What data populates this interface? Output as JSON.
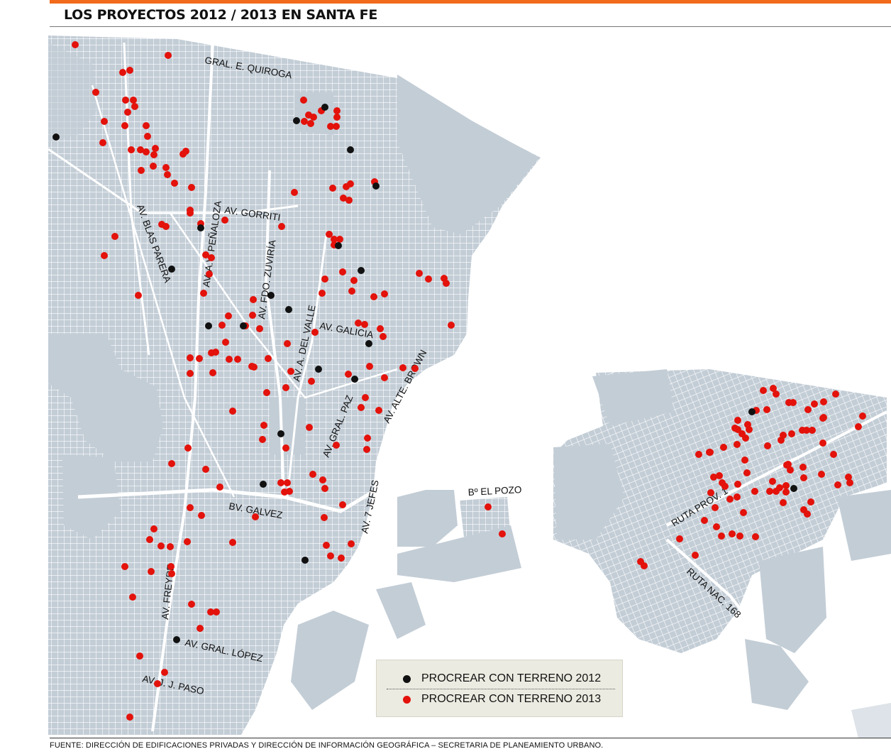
{
  "header": {
    "title": "LOS PROYECTOS 2012 / 2013 EN SANTA FE",
    "accent_color": "#f26a1b"
  },
  "map": {
    "land_color": "#c3cdd6",
    "street_grid_color": "#ffffff",
    "water_color": "#ffffff",
    "streets": [
      {
        "id": "quiroga",
        "label": "GRAL. E. QUIROGA"
      },
      {
        "id": "gorriti",
        "label": "AV. GORRITI"
      },
      {
        "id": "blas-parera",
        "label": "AV. BLAS PARERA"
      },
      {
        "id": "penaloza",
        "label": "AV. A.V. PEÑALOZA"
      },
      {
        "id": "zuviria",
        "label": "AV. FDO. ZUVIRÍA"
      },
      {
        "id": "del-valle",
        "label": "AV. A. DEL VALLE"
      },
      {
        "id": "galicia",
        "label": "AV. GALICIA"
      },
      {
        "id": "gral-paz",
        "label": "AV. GRAL. PAZ"
      },
      {
        "id": "alte-brown",
        "label": "AV. ALTE. BROWN"
      },
      {
        "id": "siete-jefes",
        "label": "AV. 7 JEFES"
      },
      {
        "id": "galvez",
        "label": "BV. GALVEZ"
      },
      {
        "id": "freyre",
        "label": "AV. FREYRE"
      },
      {
        "id": "gral-lopez",
        "label": "AV. GRAL. LÓPEZ"
      },
      {
        "id": "jj-paso",
        "label": "AV. J. J. PASO"
      },
      {
        "id": "el-pozo",
        "label": "Bº EL POZO"
      },
      {
        "id": "ruta-prov-1",
        "label": "RUTA PROV. 1"
      },
      {
        "id": "ruta-nac-168",
        "label": "RUTA NAC. 168"
      }
    ],
    "markers": {
      "procrear_2012": {
        "color": "#111111",
        "count": 22
      },
      "procrear_2013": {
        "color": "#e3120b",
        "count": 266
      }
    }
  },
  "legend": {
    "items": [
      {
        "label": "PROCREAR CON TERRENO 2012",
        "color": "#111111"
      },
      {
        "label": "PROCREAR CON TERRENO 2013",
        "color": "#e3120b"
      }
    ]
  },
  "footer": {
    "source": "FUENTE: DIRECCIÓN DE EDIFICACIONES PRIVADAS Y DIRECCIÓN DE INFORMACIÓN GEOGRÁFICA – SECRETARIA DE PLANEAMIENTO URBANO."
  }
}
